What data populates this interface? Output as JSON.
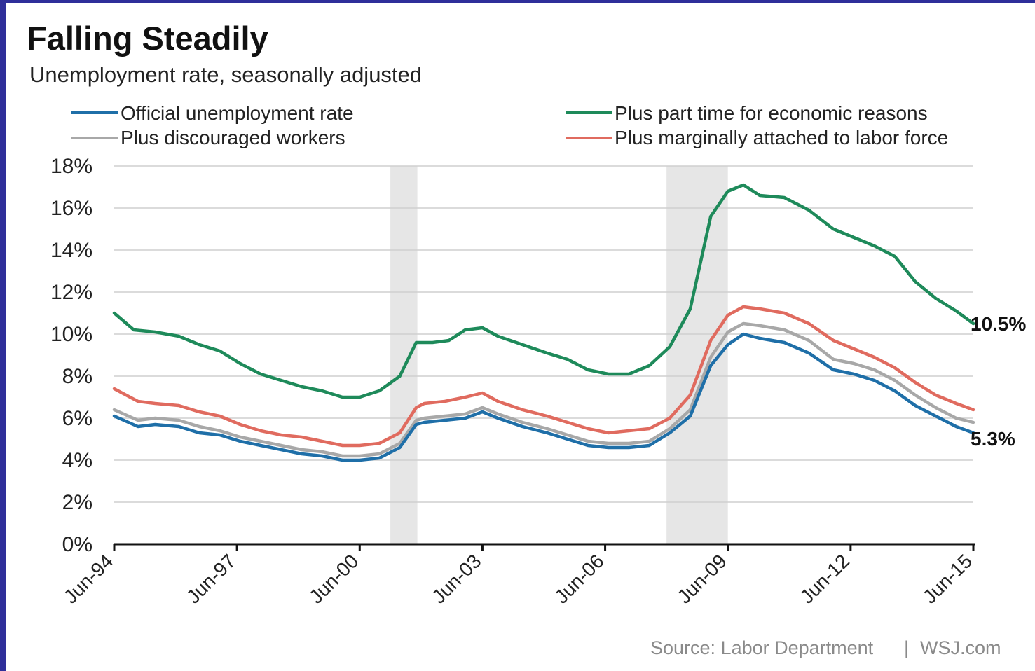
{
  "chart_data": {
    "type": "line",
    "title": "Falling Steadily",
    "subtitle": "Unemployment rate, seasonally adjusted",
    "xlabel": "",
    "ylabel": "",
    "ylim": [
      0,
      18
    ],
    "yticks": [
      "0%",
      "2%",
      "4%",
      "6%",
      "8%",
      "10%",
      "12%",
      "14%",
      "16%",
      "18%"
    ],
    "yticks_values": [
      0,
      2,
      4,
      6,
      8,
      10,
      12,
      14,
      16,
      18
    ],
    "xlim": [
      1994.42,
      2015.42
    ],
    "xticks": [
      "Jun-94",
      "Jun-97",
      "Jun-00",
      "Jun-03",
      "Jun-06",
      "Jun-09",
      "Jun-12",
      "Jun-15"
    ],
    "xticks_values": [
      1994.42,
      1997.42,
      2000.42,
      2003.42,
      2006.42,
      2009.42,
      2012.42,
      2015.42
    ],
    "grid": true,
    "legend_position": "top",
    "recessions": [
      {
        "start": 2001.17,
        "end": 2001.83
      },
      {
        "start": 2007.92,
        "end": 2009.42
      }
    ],
    "series": [
      {
        "name": "Official unemployment rate",
        "color": "#1f6fa8",
        "x": [
          1994.42,
          1995.0,
          1995.42,
          1996.0,
          1996.5,
          1997.0,
          1997.5,
          1998.0,
          1998.5,
          1999.0,
          1999.5,
          2000.0,
          2000.42,
          2000.9,
          2001.4,
          2001.8,
          2002.0,
          2002.5,
          2003.0,
          2003.42,
          2003.8,
          2004.4,
          2005.0,
          2005.5,
          2006.0,
          2006.5,
          2007.0,
          2007.5,
          2008.0,
          2008.5,
          2009.0,
          2009.42,
          2009.8,
          2010.2,
          2010.8,
          2011.4,
          2012.0,
          2012.5,
          2013.0,
          2013.5,
          2014.0,
          2014.5,
          2015.0,
          2015.42
        ],
        "values": [
          6.1,
          5.6,
          5.7,
          5.6,
          5.3,
          5.2,
          4.9,
          4.7,
          4.5,
          4.3,
          4.2,
          4.0,
          4.0,
          4.1,
          4.6,
          5.7,
          5.8,
          5.9,
          6.0,
          6.3,
          6.0,
          5.6,
          5.3,
          5.0,
          4.7,
          4.6,
          4.6,
          4.7,
          5.3,
          6.1,
          8.5,
          9.5,
          10.0,
          9.8,
          9.6,
          9.1,
          8.3,
          8.1,
          7.8,
          7.3,
          6.6,
          6.1,
          5.6,
          5.3
        ]
      },
      {
        "name": "Plus discouraged workers",
        "color": "#a8a8a8",
        "x": [
          1994.42,
          1995.0,
          1995.42,
          1996.0,
          1996.5,
          1997.0,
          1997.5,
          1998.0,
          1998.5,
          1999.0,
          1999.5,
          2000.0,
          2000.42,
          2000.9,
          2001.4,
          2001.8,
          2002.0,
          2002.5,
          2003.0,
          2003.42,
          2003.8,
          2004.4,
          2005.0,
          2005.5,
          2006.0,
          2006.5,
          2007.0,
          2007.5,
          2008.0,
          2008.5,
          2009.0,
          2009.42,
          2009.8,
          2010.2,
          2010.8,
          2011.4,
          2012.0,
          2012.5,
          2013.0,
          2013.5,
          2014.0,
          2014.5,
          2015.0,
          2015.42
        ],
        "values": [
          6.4,
          5.9,
          6.0,
          5.9,
          5.6,
          5.4,
          5.1,
          4.9,
          4.7,
          4.5,
          4.4,
          4.2,
          4.2,
          4.3,
          4.8,
          5.9,
          6.0,
          6.1,
          6.2,
          6.5,
          6.2,
          5.8,
          5.5,
          5.2,
          4.9,
          4.8,
          4.8,
          4.9,
          5.5,
          6.4,
          8.9,
          10.1,
          10.5,
          10.4,
          10.2,
          9.7,
          8.8,
          8.6,
          8.3,
          7.8,
          7.1,
          6.5,
          6.0,
          5.8
        ]
      },
      {
        "name": "Plus part time for economic reasons",
        "color": "#1e8a5a",
        "x": [
          1994.42,
          1994.9,
          1995.42,
          1996.0,
          1996.5,
          1997.0,
          1997.5,
          1998.0,
          1998.5,
          1999.0,
          1999.5,
          2000.0,
          2000.42,
          2000.9,
          2001.4,
          2001.8,
          2002.2,
          2002.6,
          2003.0,
          2003.42,
          2003.8,
          2004.4,
          2005.0,
          2005.5,
          2006.0,
          2006.5,
          2007.0,
          2007.5,
          2008.0,
          2008.5,
          2009.0,
          2009.42,
          2009.8,
          2010.2,
          2010.8,
          2011.4,
          2012.0,
          2012.5,
          2013.0,
          2013.5,
          2014.0,
          2014.5,
          2015.0,
          2015.42
        ],
        "values": [
          11.0,
          10.2,
          10.1,
          9.9,
          9.5,
          9.2,
          8.6,
          8.1,
          7.8,
          7.5,
          7.3,
          7.0,
          7.0,
          7.3,
          8.0,
          9.6,
          9.6,
          9.7,
          10.2,
          10.3,
          9.9,
          9.5,
          9.1,
          8.8,
          8.3,
          8.1,
          8.1,
          8.5,
          9.4,
          11.2,
          15.6,
          16.8,
          17.1,
          16.6,
          16.5,
          15.9,
          15.0,
          14.6,
          14.2,
          13.7,
          12.5,
          11.7,
          11.1,
          10.5
        ]
      },
      {
        "name": "Plus marginally attached to labor force",
        "color": "#e06b5f",
        "x": [
          1994.42,
          1995.0,
          1995.42,
          1996.0,
          1996.5,
          1997.0,
          1997.5,
          1998.0,
          1998.5,
          1999.0,
          1999.5,
          2000.0,
          2000.42,
          2000.9,
          2001.4,
          2001.8,
          2002.0,
          2002.5,
          2003.0,
          2003.42,
          2003.8,
          2004.4,
          2005.0,
          2005.5,
          2006.0,
          2006.5,
          2007.0,
          2007.5,
          2008.0,
          2008.5,
          2009.0,
          2009.42,
          2009.8,
          2010.2,
          2010.8,
          2011.4,
          2012.0,
          2012.5,
          2013.0,
          2013.5,
          2014.0,
          2014.5,
          2015.0,
          2015.42
        ],
        "values": [
          7.4,
          6.8,
          6.7,
          6.6,
          6.3,
          6.1,
          5.7,
          5.4,
          5.2,
          5.1,
          4.9,
          4.7,
          4.7,
          4.8,
          5.3,
          6.5,
          6.7,
          6.8,
          7.0,
          7.2,
          6.8,
          6.4,
          6.1,
          5.8,
          5.5,
          5.3,
          5.4,
          5.5,
          6.0,
          7.1,
          9.7,
          10.9,
          11.3,
          11.2,
          11.0,
          10.5,
          9.7,
          9.3,
          8.9,
          8.4,
          7.7,
          7.1,
          6.7,
          6.4
        ]
      }
    ],
    "end_labels": [
      {
        "text": "10.5%",
        "value": 10.5
      },
      {
        "text": "5.3%",
        "value": 5.3
      }
    ],
    "source": "Source: Labor Department",
    "source_separator": "|",
    "publisher": "WSJ.com"
  }
}
